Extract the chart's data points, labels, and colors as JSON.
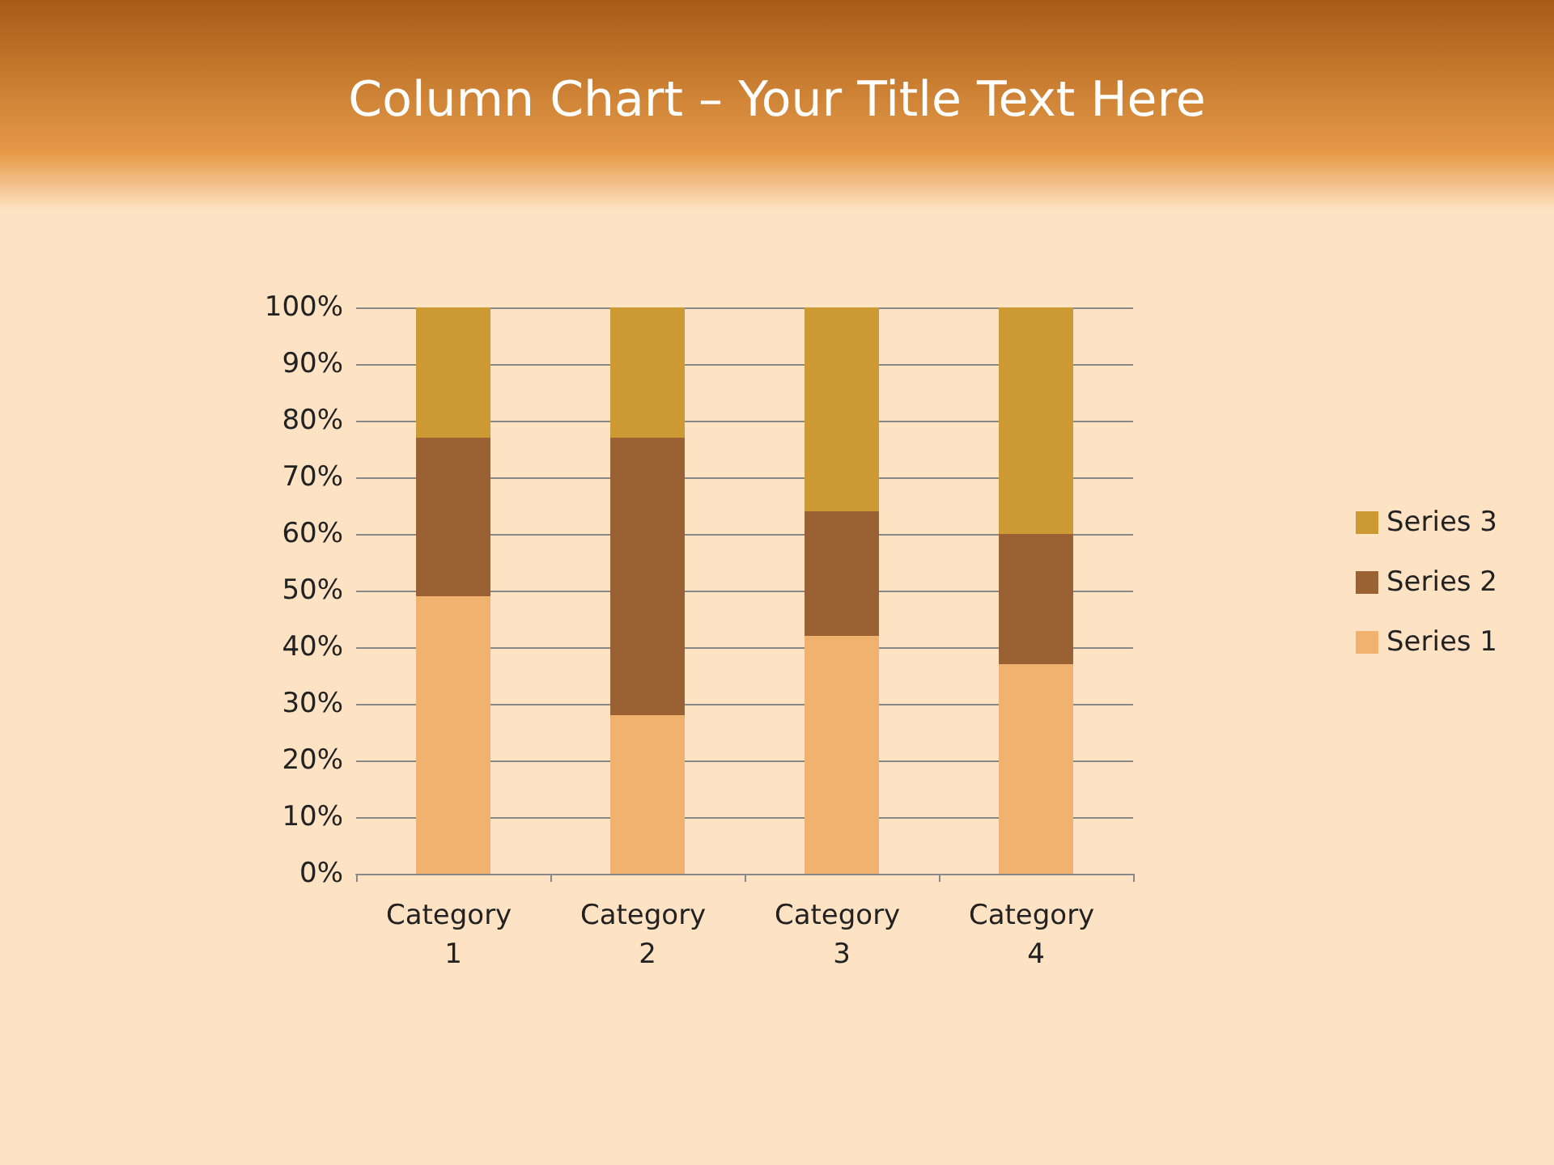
{
  "chart_data": {
    "type": "bar",
    "title": "Column Chart – Your Title Text Here",
    "stacked": true,
    "categories": [
      "Category 1",
      "Category 2",
      "Category 3",
      "Category 4"
    ],
    "series": [
      {
        "name": "Series 1",
        "color": "#f0b26e",
        "values": [
          49,
          28,
          42,
          37
        ]
      },
      {
        "name": "Series 2",
        "color": "#9a6232",
        "values": [
          28,
          49,
          22,
          23
        ]
      },
      {
        "name": "Series 3",
        "color": "#cc9933",
        "values": [
          23,
          23,
          36,
          40
        ]
      }
    ],
    "ylim": [
      0,
      100
    ],
    "yticks": [
      {
        "value": 0,
        "label": "0%"
      },
      {
        "value": 10,
        "label": "10%"
      },
      {
        "value": 20,
        "label": "20%"
      },
      {
        "value": 30,
        "label": "30%"
      },
      {
        "value": 40,
        "label": "40%"
      },
      {
        "value": 50,
        "label": "50%"
      },
      {
        "value": 60,
        "label": "60%"
      },
      {
        "value": 70,
        "label": "70%"
      },
      {
        "value": 80,
        "label": "80%"
      },
      {
        "value": 90,
        "label": "90%"
      },
      {
        "value": 100,
        "label": "100%"
      }
    ],
    "grid": "y",
    "legend": "right"
  }
}
